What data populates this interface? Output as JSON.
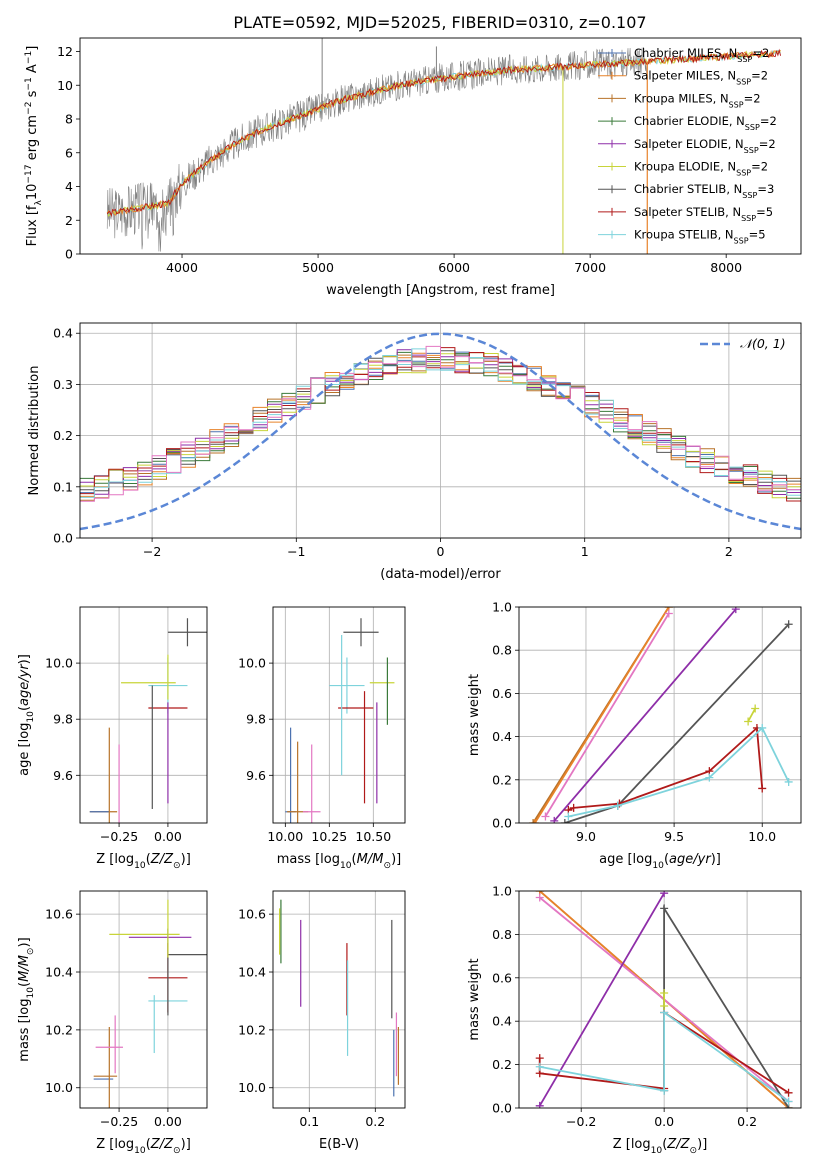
{
  "figure_title": "PLATE=0592, MJD=52025, FIBERID=0310, z=0.107",
  "colors": {
    "Chabrier MILES": "#4c72b0",
    "Salpeter MILES": "#e8832a",
    "Kroupa MILES": "#b8732a",
    "Chabrier ELODIE": "#3a7a3a",
    "Salpeter ELODIE": "#8e2ea8",
    "Kroupa ELODIE": "#c8d43a",
    "Chabrier STELIB": "#555555",
    "Salpeter STELIB": "#b01a1a",
    "Kroupa STELIB": "#7ed3dc",
    "pink": "#e377c2",
    "gauss": "#5b87d6",
    "data": "#808080"
  },
  "chart_data": [
    {
      "type": "line",
      "id": "spectrum",
      "xlabel": "wavelength [Angstrom, rest frame]",
      "ylabel": "Flux [f_λ10^-17 erg cm^-2 s^-1 A^-1]",
      "xlim": [
        3250,
        8550
      ],
      "ylim": [
        0,
        12.8
      ],
      "xticks": [
        4000,
        5000,
        6000,
        7000,
        8000
      ],
      "yticks": [
        0,
        2,
        4,
        6,
        8,
        10,
        12
      ],
      "grid": false,
      "legend_placement": "upper-right",
      "legend": [
        {
          "base": "Chabrier MILES, N",
          "sub": "SSP",
          "tail": "=2"
        },
        {
          "base": "Salpeter MILES, N",
          "sub": "SSP",
          "tail": "=2"
        },
        {
          "base": "Kroupa MILES, N",
          "sub": "SSP",
          "tail": "=2"
        },
        {
          "base": "Chabrier ELODIE, N",
          "sub": "SSP",
          "tail": "=2"
        },
        {
          "base": "Salpeter ELODIE, N",
          "sub": "SSP",
          "tail": "=2"
        },
        {
          "base": "Kroupa ELODIE, N",
          "sub": "SSP",
          "tail": "=2"
        },
        {
          "base": "Chabrier STELIB, N",
          "sub": "SSP",
          "tail": "=3"
        },
        {
          "base": "Salpeter STELIB, N",
          "sub": "SSP",
          "tail": "=5"
        },
        {
          "base": "Kroupa STELIB, N",
          "sub": "SSP",
          "tail": "=5"
        }
      ],
      "continuum": {
        "x": [
          3450,
          3600,
          3750,
          3900,
          4000,
          4200,
          4400,
          4600,
          4800,
          5000,
          5200,
          5400,
          5600,
          5800,
          6000,
          6200,
          6400,
          6600,
          6800,
          7000,
          7200,
          7400,
          7600,
          7800,
          8000,
          8200,
          8400
        ],
        "y": [
          2.4,
          2.6,
          2.8,
          3.0,
          4.2,
          5.5,
          6.6,
          7.4,
          8.0,
          8.6,
          9.2,
          9.6,
          10.0,
          10.3,
          10.5,
          10.7,
          10.9,
          11.0,
          11.1,
          11.2,
          11.3,
          11.4,
          11.5,
          11.6,
          11.7,
          11.8,
          11.9
        ]
      },
      "data_range": [
        3450,
        7420
      ]
    },
    {
      "type": "histogram",
      "id": "residuals",
      "xlabel": "(data-model)/error",
      "ylabel": "Normed distribution",
      "xlim": [
        -2.5,
        2.5
      ],
      "ylim": [
        0,
        0.42
      ],
      "xticks": [
        -2,
        -1,
        0,
        1,
        2
      ],
      "yticks": [
        0.0,
        0.1,
        0.2,
        0.3,
        0.4
      ],
      "grid": true,
      "legend_placement": "upper-right",
      "legend": [
        "𝒩(0, 1)"
      ],
      "bin_width": 0.1,
      "series": [
        {
          "name": "Chabrier MILES",
          "seed": 1
        },
        {
          "name": "Salpeter MILES",
          "seed": 2
        },
        {
          "name": "Kroupa MILES",
          "seed": 3
        },
        {
          "name": "Chabrier ELODIE",
          "seed": 4
        },
        {
          "name": "Salpeter ELODIE",
          "seed": 5
        },
        {
          "name": "Kroupa ELODIE",
          "seed": 6
        },
        {
          "name": "Chabrier STELIB",
          "seed": 7
        },
        {
          "name": "Salpeter STELIB",
          "seed": 8
        },
        {
          "name": "Kroupa STELIB",
          "seed": 9
        },
        {
          "name": "pink",
          "seed": 10
        }
      ]
    },
    {
      "type": "scatter",
      "id": "age_vs_Z",
      "xlabel": "Z [log10(Z/Z⊙)]",
      "ylabel": "age  [log10(age/yr)]",
      "xlim": [
        -0.45,
        0.2
      ],
      "ylim": [
        9.43,
        10.2
      ],
      "xticks": [
        -0.25,
        0.0
      ],
      "yticks": [
        9.6,
        9.8,
        10.0
      ],
      "grid": true,
      "crosses": [
        {
          "c": "Kroupa MILES",
          "x": -0.33,
          "y": 9.47,
          "xe": 0.07,
          "ye": 0.0
        },
        {
          "c": "Chabrier MILES",
          "x": -0.35,
          "y": 9.47,
          "xe": 0.05,
          "ye": 0.0
        },
        {
          "c": "Kroupa MILES",
          "x": -0.3,
          "y": 9.47,
          "xe": 0.0,
          "ye": 0.3
        },
        {
          "c": "pink",
          "x": -0.25,
          "y": 9.47,
          "xe": 0.0,
          "ye": 0.24
        },
        {
          "c": "Kroupa ELODIE",
          "x": -0.1,
          "y": 9.93,
          "xe": 0.14,
          "ye": 0.0
        },
        {
          "c": "Kroupa STELIB",
          "x": 0.0,
          "y": 9.92,
          "xe": 0.1,
          "ye": 0.1
        },
        {
          "c": "Salpeter STELIB",
          "x": 0.0,
          "y": 9.84,
          "xe": 0.1,
          "ye": 0.0
        },
        {
          "c": "Chabrier STELIB",
          "x": 0.1,
          "y": 10.11,
          "xe": 0.1,
          "ye": 0.05
        },
        {
          "c": "Salpeter ELODIE",
          "x": 0.0,
          "y": 9.68,
          "xe": 0.0,
          "ye": 0.18
        },
        {
          "c": "Chabrier STELIB",
          "x": -0.08,
          "y": 9.7,
          "xe": 0.0,
          "ye": 0.22
        },
        {
          "c": "Kroupa ELODIE",
          "x": 0.0,
          "y": 9.95,
          "xe": 0.0,
          "ye": 0.08
        }
      ]
    },
    {
      "type": "scatter",
      "id": "age_vs_mass",
      "xlabel": "mass [log10(M/M⊙)]",
      "ylabel": "",
      "xlim": [
        9.93,
        10.68
      ],
      "ylim": [
        9.43,
        10.2
      ],
      "xticks": [
        10.0,
        10.25,
        10.5
      ],
      "yticks": [
        9.6,
        9.8,
        10.0
      ],
      "grid": true,
      "crosses": [
        {
          "c": "Chabrier MILES",
          "x": 10.03,
          "y": 9.47,
          "xe": 0.03,
          "ye": 0.3
        },
        {
          "c": "Kroupa MILES",
          "x": 10.07,
          "y": 9.47,
          "xe": 0.06,
          "ye": 0.25
        },
        {
          "c": "pink",
          "x": 10.15,
          "y": 9.47,
          "xe": 0.05,
          "ye": 0.24
        },
        {
          "c": "Kroupa STELIB",
          "x": 10.35,
          "y": 9.92,
          "xe": 0.1,
          "ye": 0.1
        },
        {
          "c": "Salpeter STELIB",
          "x": 10.4,
          "y": 9.84,
          "xe": 0.1,
          "ye": 0.0
        },
        {
          "c": "Chabrier STELIB",
          "x": 10.43,
          "y": 10.11,
          "xe": 0.1,
          "ye": 0.05
        },
        {
          "c": "Kroupa ELODIE",
          "x": 10.55,
          "y": 9.93,
          "xe": 0.07,
          "ye": 0.0
        },
        {
          "c": "Salpeter ELODIE",
          "x": 10.52,
          "y": 9.68,
          "xe": 0.0,
          "ye": 0.18
        },
        {
          "c": "Salpeter STELIB",
          "x": 10.45,
          "y": 9.7,
          "xe": 0.0,
          "ye": 0.2
        },
        {
          "c": "Chabrier ELODIE",
          "x": 10.58,
          "y": 9.9,
          "xe": 0.0,
          "ye": 0.12
        },
        {
          "c": "Kroupa STELIB",
          "x": 10.32,
          "y": 9.85,
          "xe": 0.0,
          "ye": 0.25
        }
      ]
    },
    {
      "type": "line",
      "id": "massweight_vs_age",
      "xlabel": "age  [log10(age/yr)]",
      "ylabel": "mass weight",
      "xlim": [
        8.62,
        10.22
      ],
      "ylim": [
        0,
        1.0
      ],
      "xticks": [
        9.0,
        9.5,
        10.0
      ],
      "yticks": [
        0.0,
        0.2,
        0.4,
        0.6,
        0.8,
        1.0
      ],
      "grid": true,
      "series": [
        {
          "c": "Kroupa MILES",
          "x": [
            8.7,
            9.47
          ],
          "y": [
            0.0,
            1.0
          ]
        },
        {
          "c": "Salpeter MILES",
          "x": [
            8.71,
            9.47
          ],
          "y": [
            0.0,
            1.0
          ]
        },
        {
          "c": "pink",
          "x": [
            8.77,
            9.47
          ],
          "y": [
            0.03,
            0.97
          ]
        },
        {
          "c": "Salpeter ELODIE",
          "x": [
            8.82,
            9.85
          ],
          "y": [
            0.01,
            0.99
          ]
        },
        {
          "c": "Chabrier STELIB",
          "x": [
            8.88,
            9.18,
            10.15
          ],
          "y": [
            0.0,
            0.08,
            0.92
          ]
        },
        {
          "c": "Salpeter STELIB",
          "x": [
            8.9,
            8.93,
            9.19,
            9.7,
            9.97,
            10.0
          ],
          "y": [
            0.06,
            0.07,
            0.09,
            0.24,
            0.44,
            0.16
          ]
        },
        {
          "c": "Kroupa STELIB",
          "x": [
            8.9,
            9.18,
            9.7,
            10.0,
            10.15
          ],
          "y": [
            0.03,
            0.08,
            0.21,
            0.44,
            0.19
          ]
        },
        {
          "c": "Kroupa ELODIE",
          "x": [
            9.92,
            9.96
          ],
          "y": [
            0.47,
            0.53
          ]
        }
      ]
    },
    {
      "type": "scatter",
      "id": "mass_vs_Z",
      "xlabel": "Z [log10(Z/Z⊙)]",
      "ylabel": "mass [log10(M/M⊙)]",
      "xlim": [
        -0.45,
        0.2
      ],
      "ylim": [
        9.93,
        10.68
      ],
      "xticks": [
        -0.25,
        0.0
      ],
      "yticks": [
        10.0,
        10.2,
        10.4,
        10.6
      ],
      "grid": true,
      "crosses": [
        {
          "c": "Chabrier MILES",
          "x": -0.33,
          "y": 10.03,
          "xe": 0.05,
          "ye": 0.0
        },
        {
          "c": "Kroupa MILES",
          "x": -0.32,
          "y": 10.04,
          "xe": 0.06,
          "ye": 0.0
        },
        {
          "c": "Kroupa MILES",
          "x": -0.3,
          "y": 10.04,
          "xe": 0.0,
          "ye": 0.17
        },
        {
          "c": "pink",
          "x": -0.3,
          "y": 10.14,
          "xe": 0.07,
          "ye": 0.0
        },
        {
          "c": "pink",
          "x": -0.27,
          "y": 10.15,
          "xe": 0.0,
          "ye": 0.1
        },
        {
          "c": "Kroupa ELODIE",
          "x": -0.12,
          "y": 10.53,
          "xe": 0.18,
          "ye": 0.0
        },
        {
          "c": "Salpeter ELODIE",
          "x": -0.04,
          "y": 10.52,
          "xe": 0.16,
          "ye": 0.0
        },
        {
          "c": "Chabrier STELIB",
          "x": 0.1,
          "y": 10.46,
          "xe": 0.1,
          "ye": 0.0
        },
        {
          "c": "Salpeter STELIB",
          "x": 0.0,
          "y": 10.38,
          "xe": 0.1,
          "ye": 0.12
        },
        {
          "c": "Kroupa STELIB",
          "x": 0.0,
          "y": 10.3,
          "xe": 0.1,
          "ye": 0.0
        },
        {
          "c": "Kroupa STELIB",
          "x": -0.07,
          "y": 10.22,
          "xe": 0.0,
          "ye": 0.1
        },
        {
          "c": "Chabrier STELIB",
          "x": 0.0,
          "y": 10.4,
          "xe": 0.0,
          "ye": 0.15
        },
        {
          "c": "Kroupa ELODIE",
          "x": 0.0,
          "y": 10.55,
          "xe": 0.0,
          "ye": 0.1
        }
      ]
    },
    {
      "type": "scatter",
      "id": "mass_vs_EBV",
      "xlabel": "E(B-V)",
      "ylabel": "",
      "xlim": [
        0.045,
        0.245
      ],
      "ylim": [
        9.93,
        10.68
      ],
      "xticks": [
        0.1,
        0.2
      ],
      "yticks": [
        10.0,
        10.2,
        10.4,
        10.6
      ],
      "grid": true,
      "vlines": [
        {
          "c": "Chabrier ELODIE",
          "x": 0.057,
          "y0": 10.43,
          "y1": 10.65
        },
        {
          "c": "Kroupa ELODIE",
          "x": 0.055,
          "y0": 10.46,
          "y1": 10.62
        },
        {
          "c": "Salpeter ELODIE",
          "x": 0.087,
          "y0": 10.28,
          "y1": 10.58
        },
        {
          "c": "Salpeter STELIB",
          "x": 0.157,
          "y0": 10.25,
          "y1": 10.5
        },
        {
          "c": "Kroupa STELIB",
          "x": 0.158,
          "y0": 10.11,
          "y1": 10.44
        },
        {
          "c": "Chabrier STELIB",
          "x": 0.225,
          "y0": 10.24,
          "y1": 10.58
        },
        {
          "c": "Chabrier MILES",
          "x": 0.228,
          "y0": 9.97,
          "y1": 10.2
        },
        {
          "c": "pink",
          "x": 0.232,
          "y0": 10.04,
          "y1": 10.26
        },
        {
          "c": "Kroupa MILES",
          "x": 0.235,
          "y0": 10.01,
          "y1": 10.21
        }
      ]
    },
    {
      "type": "line",
      "id": "massweight_vs_Z",
      "xlabel": "Z [log10(Z/Z⊙)]",
      "ylabel": "mass weight",
      "xlim": [
        -0.35,
        0.33
      ],
      "ylim": [
        0,
        1.0
      ],
      "xticks": [
        -0.2,
        0.0,
        0.2
      ],
      "yticks": [
        0.0,
        0.2,
        0.4,
        0.6,
        0.8,
        1.0
      ],
      "grid": true,
      "series": [
        {
          "c": "Kroupa MILES",
          "x": [
            -0.3,
            0.3
          ],
          "y": [
            1.0,
            0.0
          ]
        },
        {
          "c": "Salpeter MILES",
          "x": [
            -0.3,
            0.3
          ],
          "y": [
            1.0,
            0.0
          ]
        },
        {
          "c": "pink",
          "x": [
            -0.3,
            0.3
          ],
          "y": [
            0.97,
            0.03
          ]
        },
        {
          "c": "Salpeter ELODIE",
          "x": [
            -0.3,
            0.0
          ],
          "y": [
            0.01,
            0.99
          ]
        },
        {
          "c": "Chabrier STELIB",
          "x": [
            0.0,
            0.0,
            0.3
          ],
          "y": [
            0.08,
            0.92,
            0.0
          ]
        },
        {
          "c": "Salpeter STELIB",
          "x": [
            -0.3,
            -0.3,
            0.0,
            0.0,
            0.3
          ],
          "y": [
            0.23,
            0.16,
            0.09,
            0.44,
            0.07
          ]
        },
        {
          "c": "Kroupa STELIB",
          "x": [
            -0.3,
            0.0,
            0.0,
            0.3
          ],
          "y": [
            0.19,
            0.08,
            0.44,
            0.03
          ]
        },
        {
          "c": "Kroupa ELODIE",
          "x": [
            0.0,
            0.0
          ],
          "y": [
            0.47,
            0.53
          ]
        }
      ]
    }
  ]
}
